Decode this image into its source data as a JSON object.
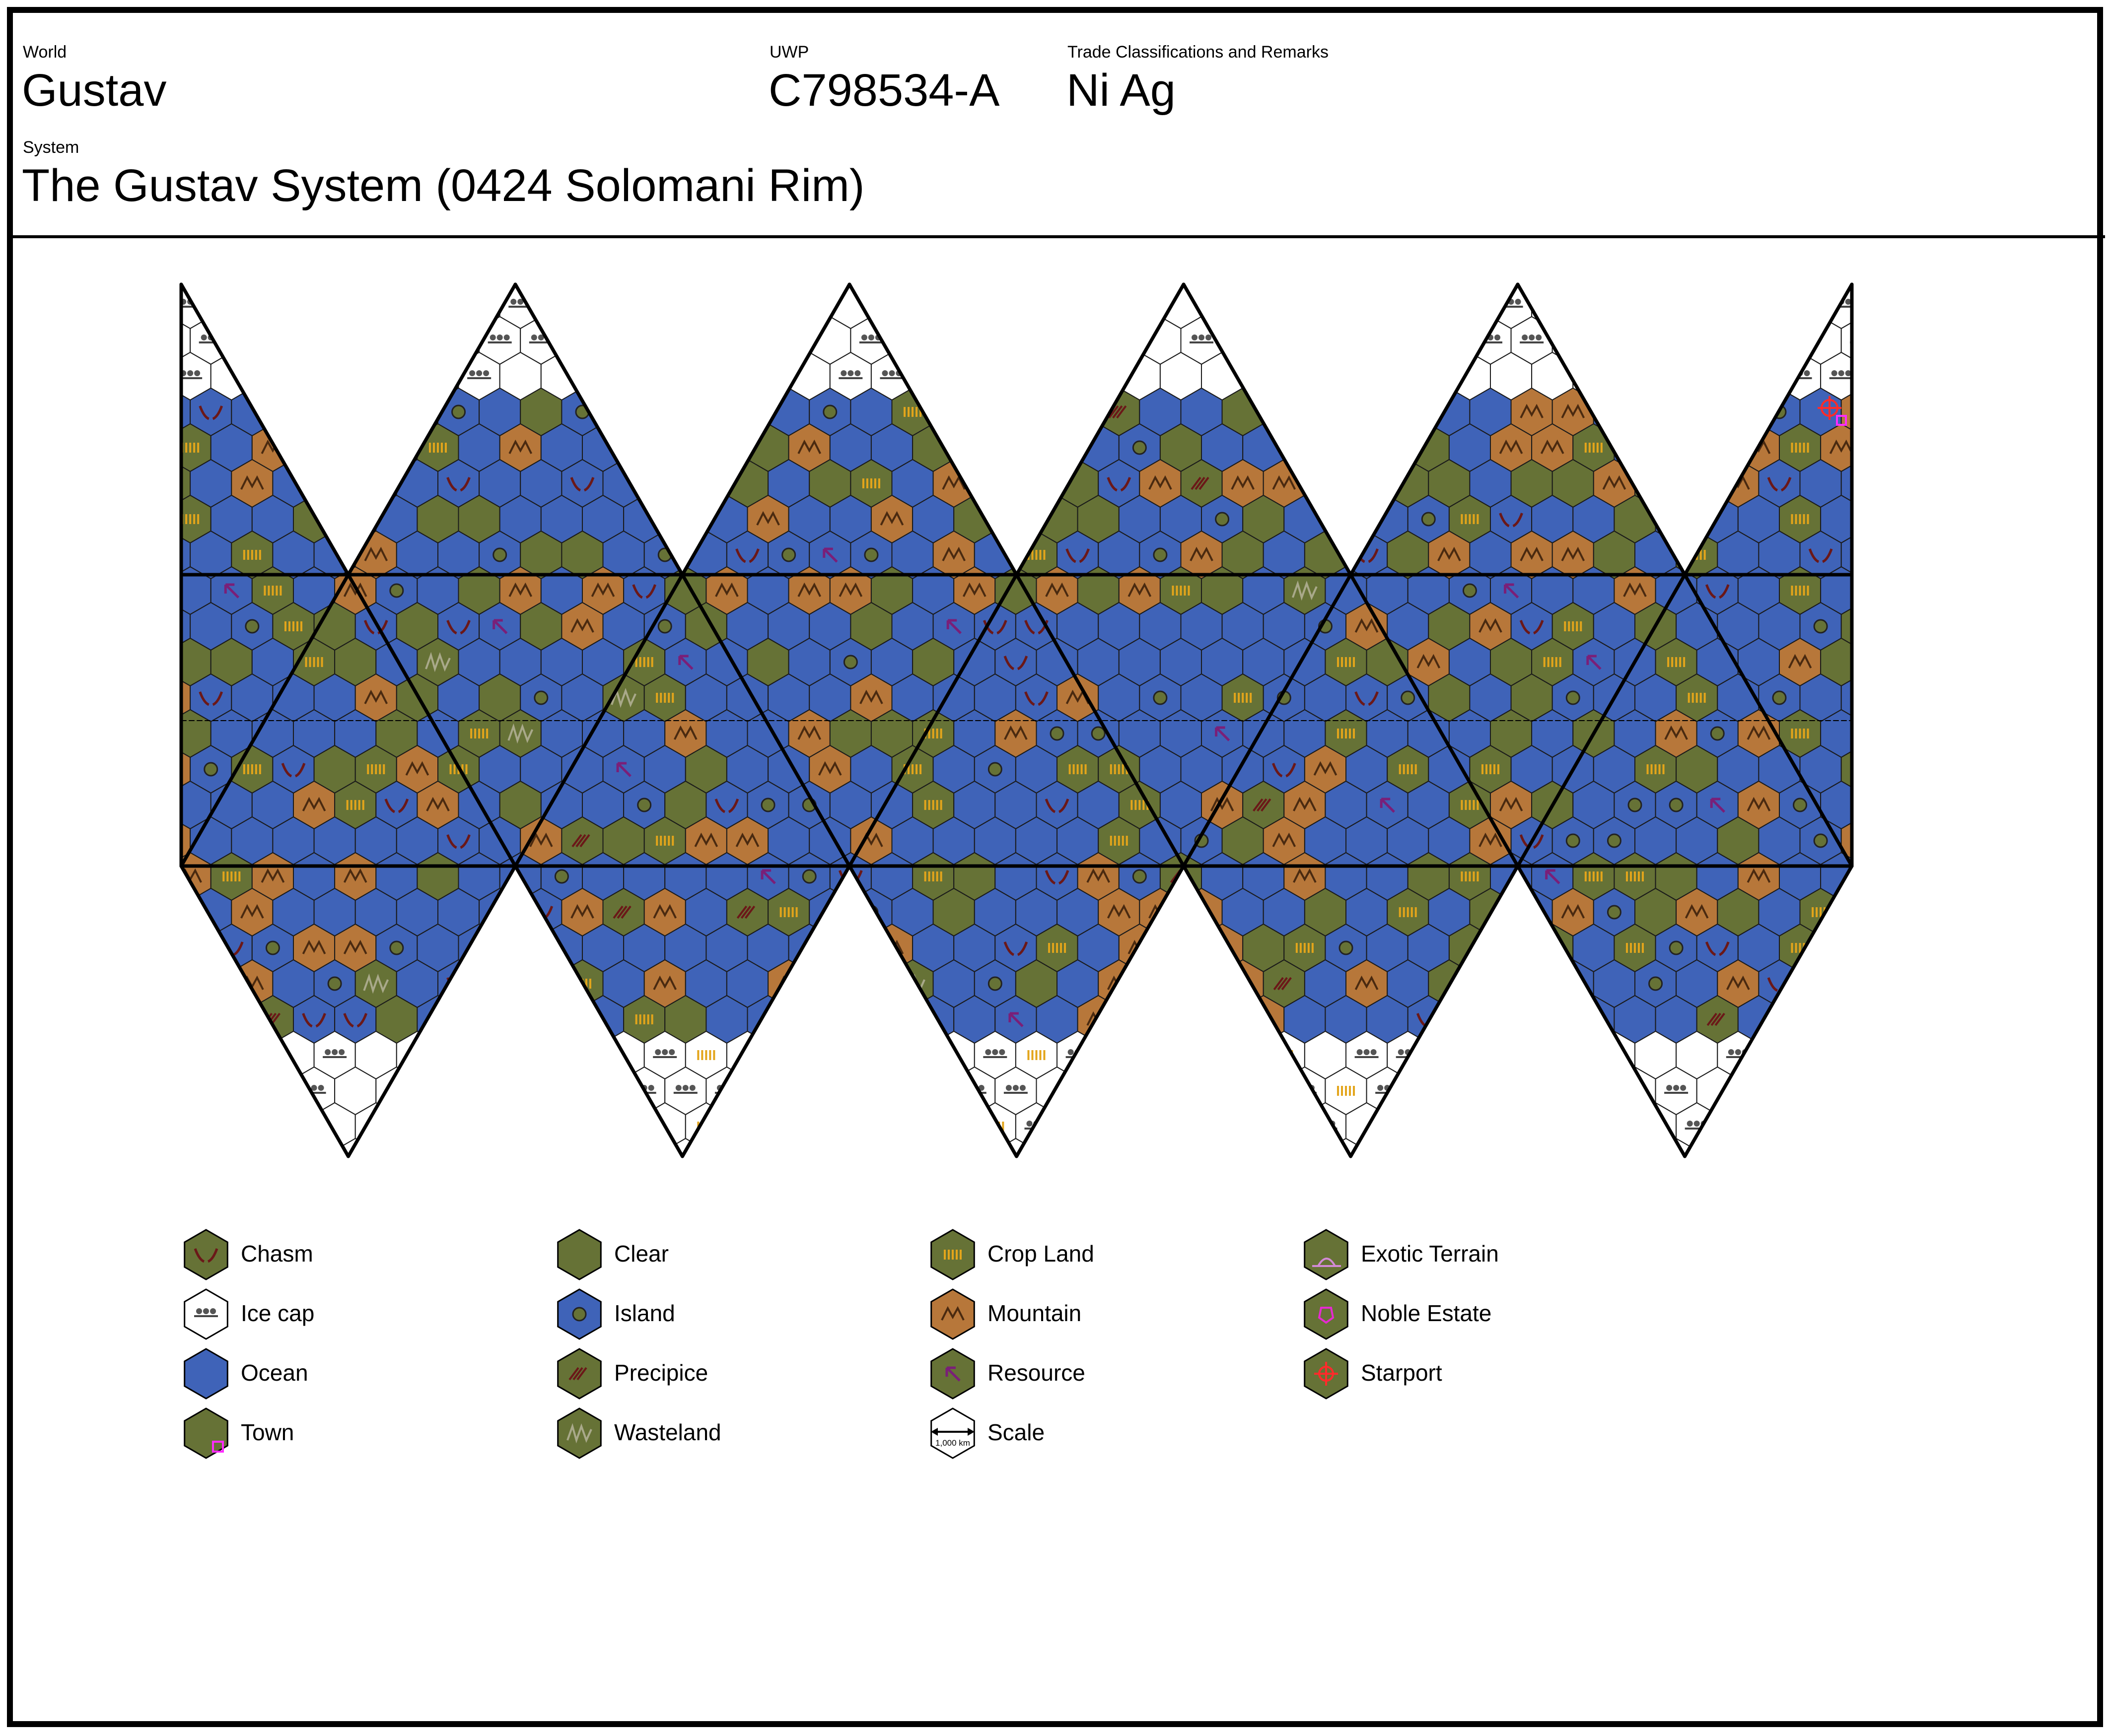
{
  "header": {
    "world_label": "World",
    "world": "Gustav",
    "uwp_label": "UWP",
    "uwp": "C798534-A",
    "trade_label": "Trade Classifications and Remarks",
    "trade": "Ni Ag",
    "system_label": "System",
    "system": "The Gustav System (0424 Solomani Rim)"
  },
  "colors": {
    "ocean": "#3f63b8",
    "clear": "#667236",
    "mountain": "#b7773a",
    "icecap": "#ffffff",
    "crop": "#e3a51b",
    "chasm": "#6b1818",
    "resource": "#7a1f78",
    "wasteland": "#a9a98a",
    "exotic": "#d28ad6",
    "noble": "#e62ad1",
    "starport": "#ff2b2b",
    "town": "#ff2bff"
  },
  "map": {
    "projection": "icosahedral world map",
    "terrain": {
      "ice_cap_bands": [
        "north polar",
        "south polar"
      ],
      "dominant": "Ocean"
    }
  },
  "legend": [
    {
      "label": "Chasm",
      "icon": "chasm-icon"
    },
    {
      "label": "Ice cap",
      "icon": "ice-cap-icon"
    },
    {
      "label": "Ocean",
      "icon": "ocean-icon"
    },
    {
      "label": "Town",
      "icon": "town-icon"
    },
    {
      "label": "Clear",
      "icon": "clear-icon"
    },
    {
      "label": "Island",
      "icon": "island-icon"
    },
    {
      "label": "Precipice",
      "icon": "precipice-icon"
    },
    {
      "label": "Wasteland",
      "icon": "wasteland-icon"
    },
    {
      "label": "Crop Land",
      "icon": "crop-land-icon"
    },
    {
      "label": "Mountain",
      "icon": "mountain-icon"
    },
    {
      "label": "Resource",
      "icon": "resource-icon"
    },
    {
      "label": "Scale",
      "icon": "scale-icon"
    },
    {
      "label": "Exotic Terrain",
      "icon": "exotic-terrain-icon"
    },
    {
      "label": "Noble Estate",
      "icon": "noble-estate-icon"
    },
    {
      "label": "Starport",
      "icon": "starport-icon"
    }
  ],
  "scale_text": "1,000 km"
}
